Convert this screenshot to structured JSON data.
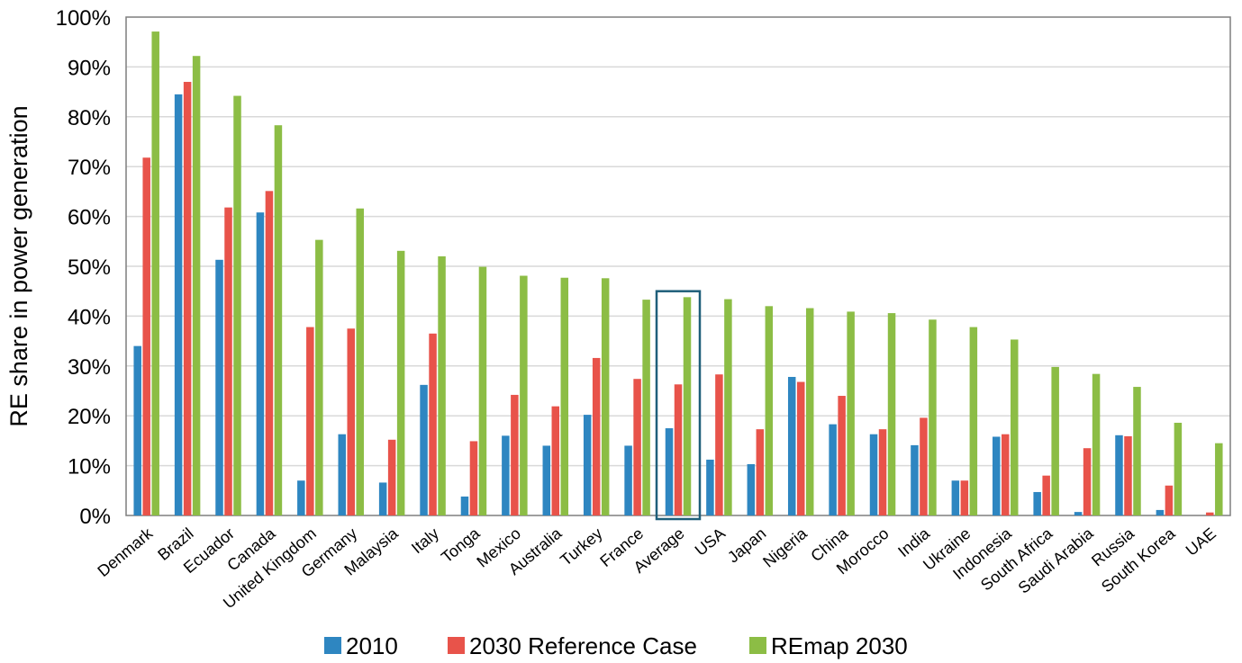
{
  "chart_data": {
    "type": "bar",
    "ylabel": "RE share in power generation",
    "xlabel": "",
    "ylim": [
      0,
      100
    ],
    "yticks": [
      "0%",
      "10%",
      "20%",
      "30%",
      "40%",
      "50%",
      "60%",
      "70%",
      "80%",
      "90%",
      "100%"
    ],
    "grid": true,
    "legend_position": "bottom",
    "highlighted_category": "Average",
    "categories": [
      "Denmark",
      "Brazil",
      "Ecuador",
      "Canada",
      "United Kingdom",
      "Germany",
      "Malaysia",
      "Italy",
      "Tonga",
      "Mexico",
      "Australia",
      "Turkey",
      "France",
      "Average",
      "USA",
      "Japan",
      "Nigeria",
      "China",
      "Morocco",
      "India",
      "Ukraine",
      "Indonesia",
      "South Africa",
      "Saudi Arabia",
      "Russia",
      "South Korea",
      "UAE"
    ],
    "series": [
      {
        "name": "2010",
        "color": "#2e86c1",
        "values": [
          34,
          84.5,
          51.3,
          60.8,
          7,
          16.3,
          6.6,
          26.2,
          3.8,
          16,
          14,
          20.2,
          14,
          17.5,
          11.2,
          10.3,
          27.8,
          18.3,
          16.3,
          14.1,
          7,
          15.8,
          4.7,
          0.7,
          16.1,
          1.1,
          0
        ]
      },
      {
        "name": "2030 Reference Case",
        "color": "#e8534a",
        "values": [
          71.8,
          87,
          61.8,
          65.1,
          37.8,
          37.5,
          15.2,
          36.5,
          14.9,
          24.2,
          21.9,
          31.6,
          27.4,
          26.3,
          28.3,
          17.3,
          26.8,
          24,
          17.3,
          19.6,
          7,
          16.3,
          8,
          13.5,
          15.9,
          6,
          0.6
        ]
      },
      {
        "name": "REmap 2030",
        "color": "#8cbd45",
        "values": [
          97.1,
          92.2,
          84.2,
          78.3,
          55.3,
          61.6,
          53.1,
          52,
          49.9,
          48.1,
          47.7,
          47.6,
          43.3,
          43.8,
          43.4,
          42,
          41.6,
          40.9,
          40.6,
          39.3,
          37.8,
          35.3,
          29.8,
          28.4,
          25.8,
          18.6,
          14.5
        ]
      }
    ],
    "highlight_color": "#1f5f7a",
    "grid_color": "#d9d9d9",
    "frame_color": "#7f7f7f"
  }
}
